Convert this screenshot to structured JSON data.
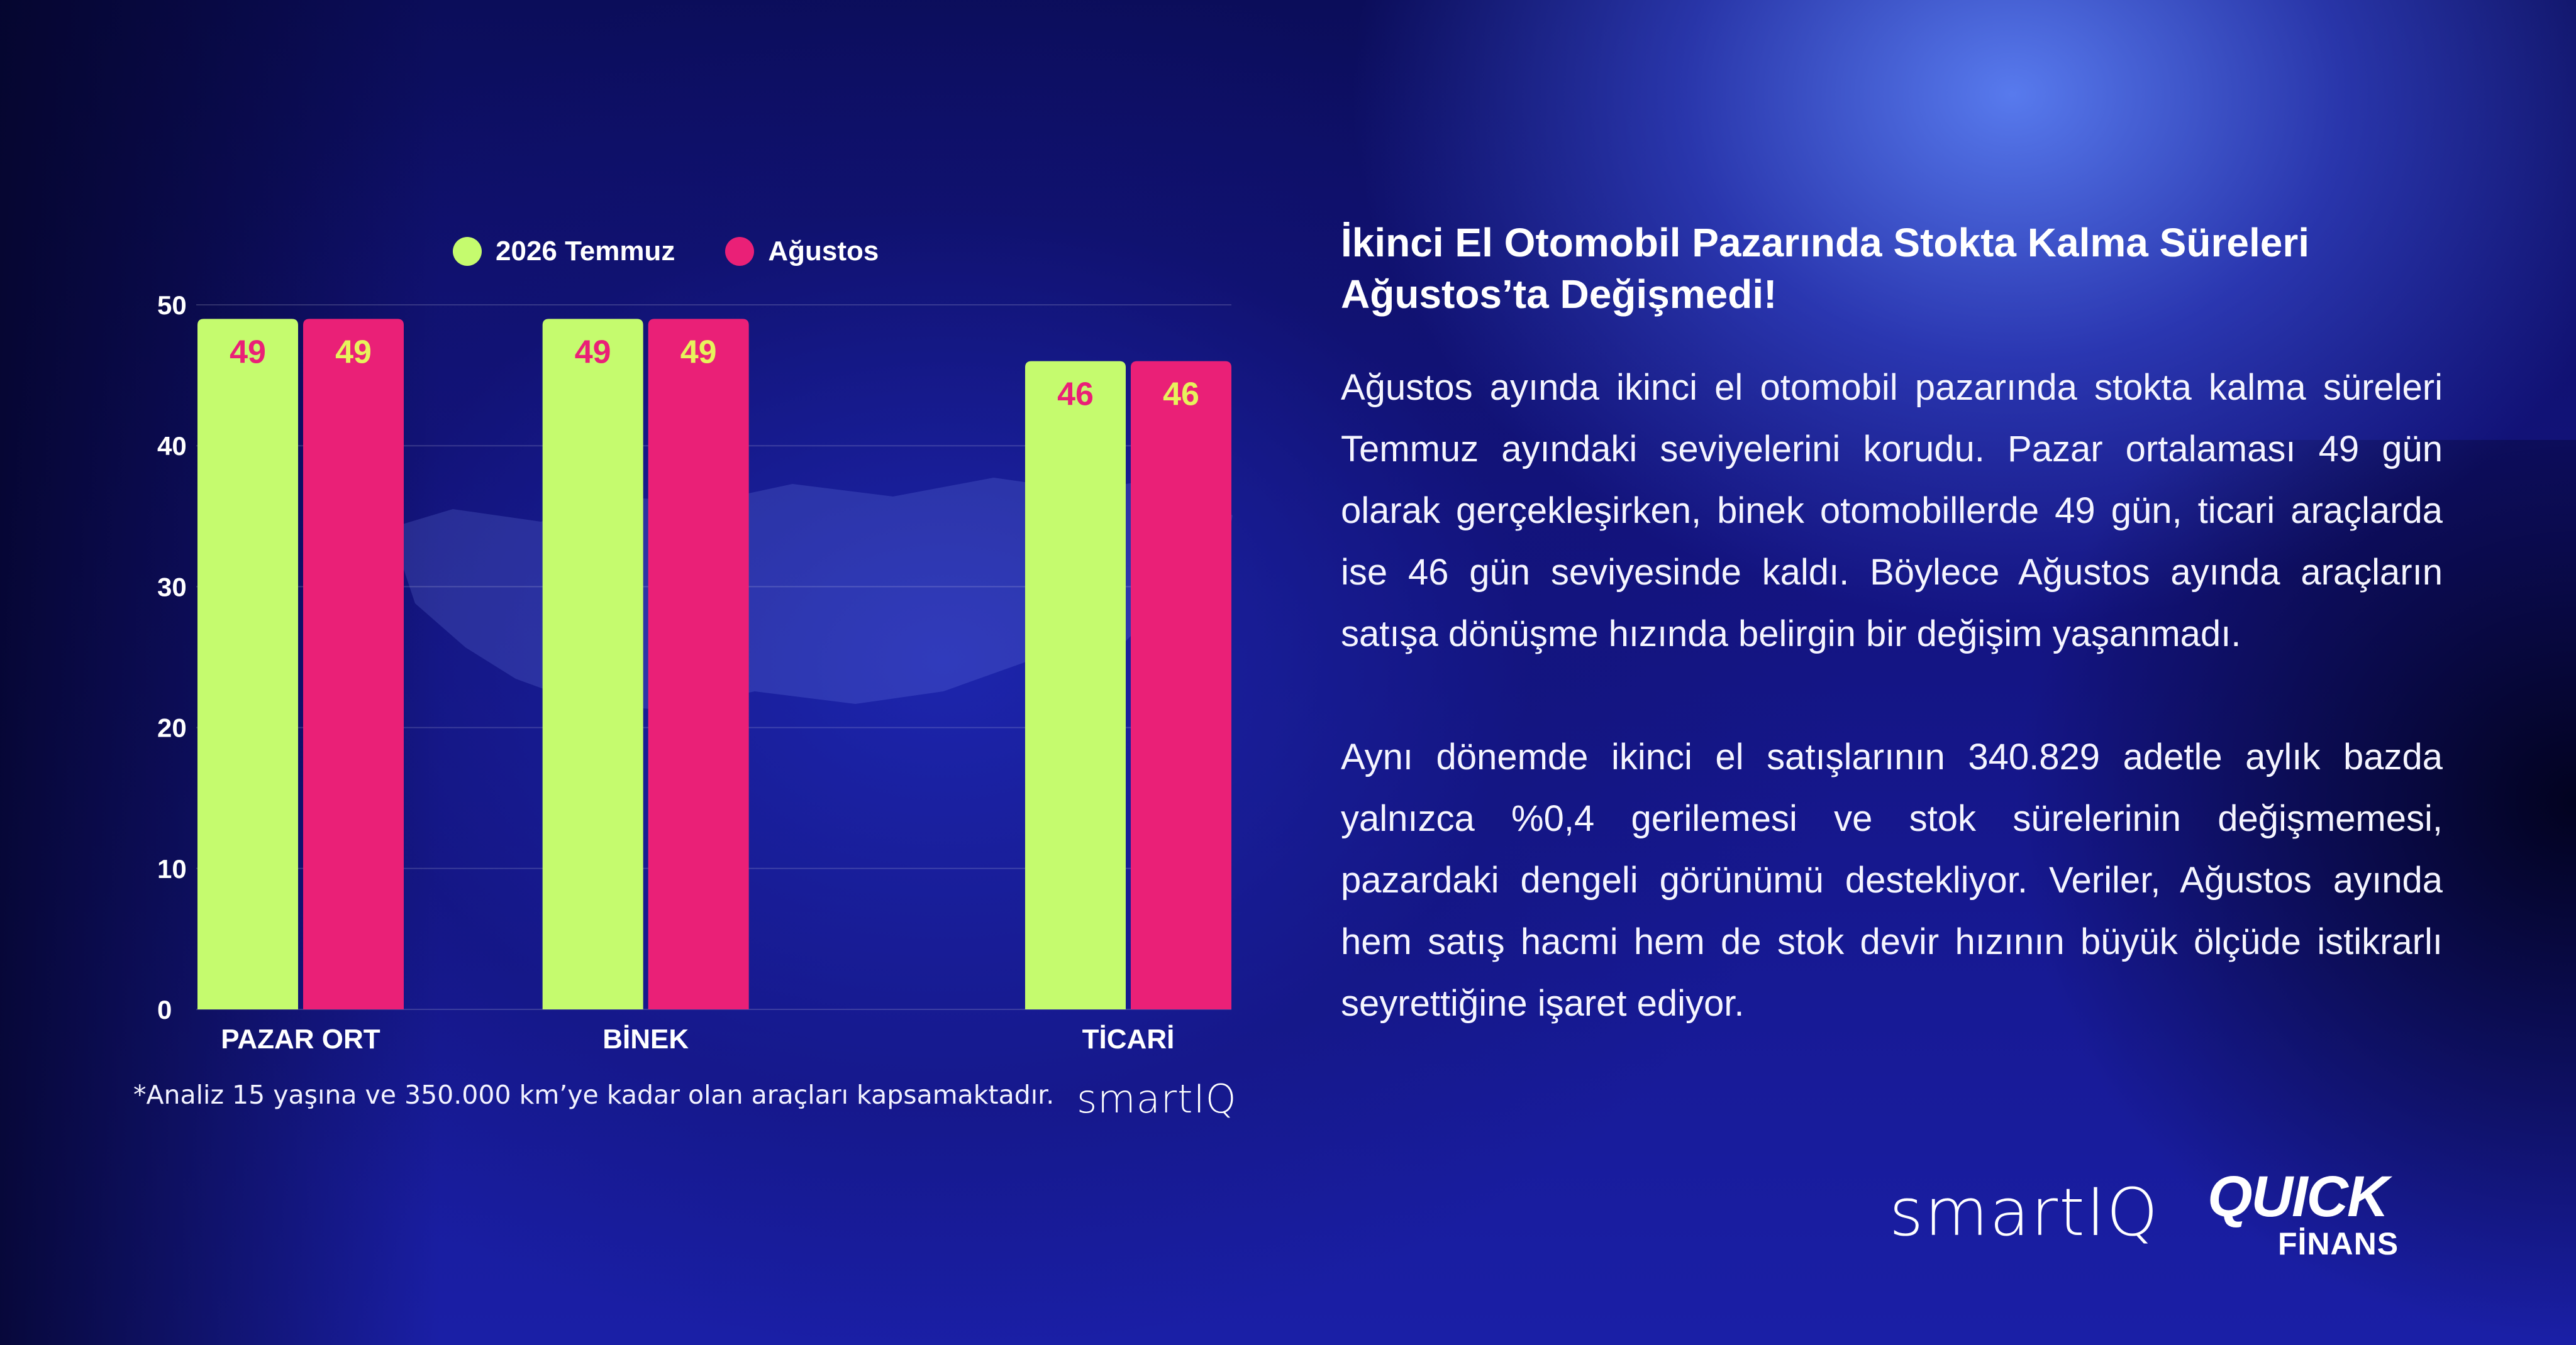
{
  "colors": {
    "series1": "#c5fb6e",
    "series2": "#ea2077",
    "label_on_series1": "#ea2077",
    "label_on_series2": "#e7f25c",
    "logo_accent": "#3ed1a8"
  },
  "chart_data": {
    "type": "bar",
    "categories": [
      "PAZAR ORT",
      "BİNEK",
      "TİCARİ"
    ],
    "series": [
      {
        "name": "2026 Temmuz",
        "values": [
          49,
          49,
          46
        ]
      },
      {
        "name": "Ağustos",
        "values": [
          49,
          49,
          46
        ]
      }
    ],
    "ylim": [
      0,
      50
    ],
    "yticks": [
      0,
      10,
      20,
      30,
      40,
      50
    ],
    "grid": true,
    "legend": "top"
  },
  "footnote": "*Analiz 15 yaşına ve 350.000 km’ye kadar olan araçları kapsamaktadır.",
  "chart_logo": "smartIQ",
  "article": {
    "title": "İkinci El Otomobil Pazarında Stokta Kalma Süreleri Ağustos’ta Değişmedi!",
    "paragraph1": "Ağustos ayında ikinci el otomobil pazarında stokta kalma süreleri Temmuz ayındaki seviyelerini korudu. Pazar ortalaması 49 gün olarak gerçekleşirken, binek otomobillerde 49 gün, ticari araçlarda ise 46 gün seviyesinde kaldı. Böylece Ağustos ayında araçların satışa dönüşme hızında belirgin bir değişim yaşanmadı.",
    "paragraph2": "Aynı dönemde ikinci el satışlarının 340.829 adetle aylık bazda yalnızca %0,4 gerilemesi ve stok sürelerinin değişmemesi, pazardaki dengeli görünümü destekliyor. Veriler, Ağustos ayında hem satış hacmi hem de stok devir hızının büyük ölçüde istikrarlı seyrettiğine işaret ediyor."
  },
  "logos": {
    "smartiq": "smartIQ",
    "quick": "QUICK",
    "finans": "FİNANS"
  }
}
